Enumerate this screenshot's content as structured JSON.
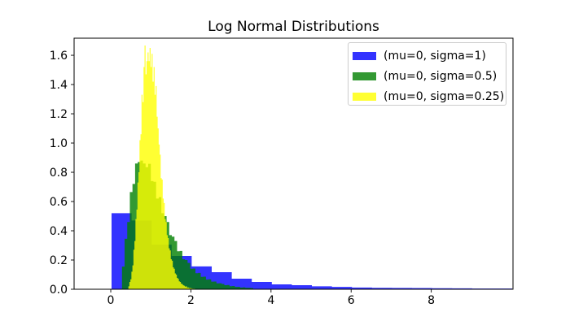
{
  "chart_data": {
    "type": "bar",
    "subtype": "overlaid-density-histograms",
    "title": "Log Normal Distributions",
    "xlabel": "",
    "ylabel": "",
    "xlim": [
      -0.915,
      10.04
    ],
    "ylim": [
      0,
      1.717
    ],
    "grid": false,
    "background": "#ffffff",
    "frame_color": "#000000",
    "xticks": {
      "values": [
        0,
        2,
        4,
        6,
        8
      ],
      "labels": [
        "0",
        "2",
        "4",
        "6",
        "8"
      ]
    },
    "yticks": {
      "values": [
        0,
        0.2,
        0.4,
        0.6,
        0.8,
        1.0,
        1.2,
        1.4,
        1.6
      ],
      "labels": [
        "0.0",
        "0.2",
        "0.4",
        "0.6",
        "0.8",
        "1.0",
        "1.2",
        "1.4",
        "1.6"
      ]
    },
    "legend": {
      "position": "upper right",
      "border_color": "#cccccc",
      "items": [
        {
          "label": "(mu=0, sigma=1)",
          "color": "#3333ff"
        },
        {
          "label": "(mu=0, sigma=0.5)",
          "color": "#339933"
        },
        {
          "label": "(mu=0, sigma=0.25)",
          "color": "#ffff33"
        }
      ]
    },
    "series": [
      {
        "name": "(mu=0, sigma=1)",
        "color": "#0000ff",
        "alpha": 0.8,
        "bin_start": 0.02,
        "bin_width": 0.5,
        "heights": [
          0.52,
          0.47,
          0.305,
          0.228,
          0.156,
          0.117,
          0.072,
          0.05,
          0.033,
          0.028,
          0.02,
          0.016,
          0.012,
          0.01,
          0.009,
          0.008,
          0.007,
          0.006,
          0.005,
          0.005
        ]
      },
      {
        "name": "(mu=0, sigma=0.5)",
        "color": "#007f00",
        "alpha": 0.8,
        "bin_start": 0.28,
        "bin_width": 0.0655,
        "heights": [
          0.155,
          0.345,
          0.46,
          0.665,
          0.72,
          0.86,
          0.87,
          0.88,
          0.86,
          0.835,
          0.858,
          0.74,
          0.735,
          0.62,
          0.63,
          0.52,
          0.5,
          0.46,
          0.37,
          0.36,
          0.33,
          0.26,
          0.262,
          0.205,
          0.2,
          0.18,
          0.14,
          0.142,
          0.11,
          0.112,
          0.085,
          0.086,
          0.066,
          0.068,
          0.052,
          0.053,
          0.04,
          0.041,
          0.036,
          0.028,
          0.029,
          0.021,
          0.022,
          0.016,
          0.017,
          0.012,
          0.013,
          0.01,
          0.01,
          0.008
        ]
      },
      {
        "name": "(mu=0, sigma=0.25)",
        "color": "#ffff00",
        "alpha": 0.8,
        "bin_start": 0.44,
        "bin_width": 0.0252,
        "heights": [
          0.02,
          0.05,
          0.068,
          0.12,
          0.163,
          0.27,
          0.33,
          0.48,
          0.545,
          0.73,
          0.8,
          1.02,
          1.06,
          1.33,
          1.28,
          1.52,
          1.667,
          1.47,
          1.56,
          1.62,
          1.56,
          1.65,
          1.52,
          1.61,
          1.42,
          1.52,
          1.33,
          1.39,
          1.18,
          1.1,
          0.99,
          0.92,
          0.76,
          0.75,
          0.62,
          0.59,
          0.48,
          0.46,
          0.37,
          0.35,
          0.28,
          0.265,
          0.205,
          0.195,
          0.15,
          0.14,
          0.108,
          0.1,
          0.078,
          0.071,
          0.054,
          0.05,
          0.038,
          0.035,
          0.027,
          0.024,
          0.018,
          0.02,
          0.012,
          0.012,
          0.008,
          0.008,
          0.006,
          0.005,
          0.004,
          0.004,
          0.003,
          0.003,
          0.002,
          0.002,
          0.001
        ]
      }
    ]
  }
}
